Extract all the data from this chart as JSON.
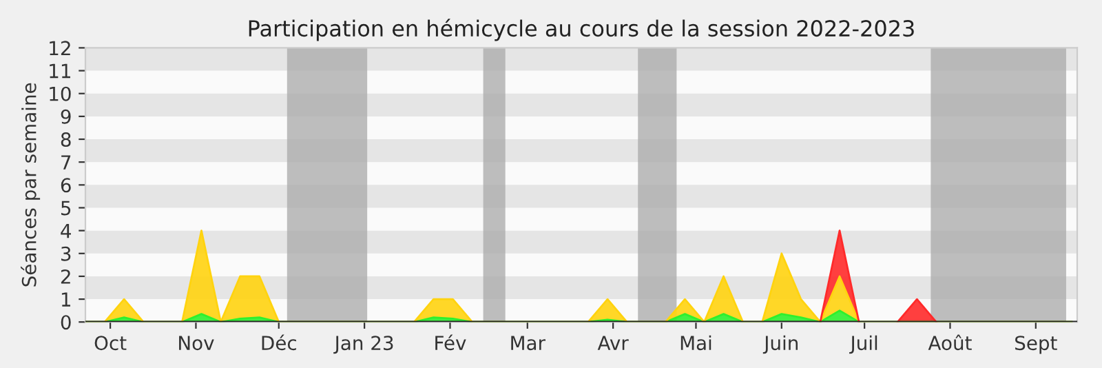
{
  "chart_data": {
    "type": "area",
    "stacked": true,
    "title": "Participation en hémicycle au cours de la session 2022-2023",
    "ylabel": "Séances par semaine",
    "x": [
      "2022-09-22",
      "2022-09-29",
      "2022-10-06",
      "2022-10-13",
      "2022-10-20",
      "2022-10-27",
      "2022-11-03",
      "2022-11-10",
      "2022-11-17",
      "2022-11-24",
      "2022-12-01",
      "2022-12-08",
      "2022-12-15",
      "2022-12-22",
      "2022-12-29",
      "2023-01-05",
      "2023-01-12",
      "2023-01-19",
      "2023-01-26",
      "2023-02-02",
      "2023-02-09",
      "2023-02-16",
      "2023-02-23",
      "2023-03-02",
      "2023-03-09",
      "2023-03-16",
      "2023-03-23",
      "2023-03-30",
      "2023-04-06",
      "2023-04-13",
      "2023-04-20",
      "2023-04-27",
      "2023-05-04",
      "2023-05-11",
      "2023-05-18",
      "2023-05-25",
      "2023-06-01",
      "2023-06-08",
      "2023-06-15",
      "2023-06-22",
      "2023-06-29",
      "2023-07-06",
      "2023-07-13",
      "2023-07-20",
      "2023-07-27",
      "2023-08-03",
      "2023-08-10",
      "2023-08-17",
      "2023-08-24",
      "2023-08-31",
      "2023-09-07",
      "2023-09-14"
    ],
    "series": [
      {
        "color": "#2ef02e",
        "values": [
          0,
          0,
          0.2,
          0,
          0,
          0,
          0.35,
          0,
          0.15,
          0.2,
          0,
          0,
          0,
          0,
          0,
          0,
          0,
          0,
          0.2,
          0.15,
          0,
          0,
          0,
          0,
          0,
          0,
          0,
          0.1,
          0,
          0,
          0,
          0.35,
          0,
          0.35,
          0,
          0,
          0.35,
          0.2,
          0,
          0.5,
          0,
          0,
          0,
          0,
          0,
          0,
          0,
          0,
          0,
          0,
          0,
          0
        ]
      },
      {
        "color": "#ffd30f",
        "values": [
          0,
          0,
          0.8,
          0,
          0,
          0,
          3.65,
          0,
          1.85,
          1.8,
          0,
          0,
          0,
          0,
          0,
          0,
          0,
          0,
          0.8,
          0.85,
          0,
          0,
          0,
          0,
          0,
          0,
          0,
          0.9,
          0,
          0,
          0,
          0.65,
          0,
          1.65,
          0,
          0,
          2.65,
          0.8,
          0,
          1.5,
          0,
          0,
          0,
          0,
          0,
          0,
          0,
          0,
          0,
          0,
          0,
          0
        ]
      },
      {
        "color": "#ff2a2a",
        "values": [
          null,
          null,
          null,
          null,
          null,
          null,
          null,
          null,
          null,
          null,
          null,
          null,
          null,
          null,
          null,
          null,
          null,
          null,
          null,
          null,
          null,
          null,
          null,
          null,
          null,
          null,
          null,
          null,
          null,
          null,
          null,
          null,
          null,
          null,
          null,
          null,
          null,
          null,
          0,
          2,
          0,
          null,
          0,
          1,
          0,
          null,
          null,
          null,
          null,
          null,
          null,
          null
        ]
      }
    ],
    "xlim": [
      "2022-09-22",
      "2023-09-16"
    ],
    "xticks": [
      {
        "value": "2022-10-01",
        "label": "Oct"
      },
      {
        "value": "2022-11-01",
        "label": "Nov"
      },
      {
        "value": "2022-12-01",
        "label": "Déc"
      },
      {
        "value": "2023-01-01",
        "label": "Jan 23"
      },
      {
        "value": "2023-02-01",
        "label": "Fév"
      },
      {
        "value": "2023-03-01",
        "label": "Mar"
      },
      {
        "value": "2023-04-01",
        "label": "Avr"
      },
      {
        "value": "2023-05-01",
        "label": "Mai"
      },
      {
        "value": "2023-06-01",
        "label": "Juin"
      },
      {
        "value": "2023-07-01",
        "label": "Juil"
      },
      {
        "value": "2023-08-01",
        "label": "Août"
      },
      {
        "value": "2023-09-01",
        "label": "Sept"
      }
    ],
    "ylim": [
      0,
      12
    ],
    "yticks": [
      0,
      1,
      2,
      3,
      4,
      5,
      6,
      7,
      8,
      9,
      10,
      11,
      12
    ],
    "bands": [
      {
        "axis": "y",
        "from": 1,
        "to": 2,
        "color": "#e5e5e5"
      },
      {
        "axis": "y",
        "from": 3,
        "to": 4,
        "color": "#e5e5e5"
      },
      {
        "axis": "y",
        "from": 5,
        "to": 6,
        "color": "#e5e5e5"
      },
      {
        "axis": "y",
        "from": 7,
        "to": 8,
        "color": "#e5e5e5"
      },
      {
        "axis": "y",
        "from": 9,
        "to": 10,
        "color": "#e5e5e5"
      },
      {
        "axis": "y",
        "from": 11,
        "to": 12,
        "color": "#e5e5e5"
      },
      {
        "axis": "x",
        "from": "2022-12-04",
        "to": "2023-01-02",
        "color": "#a8a8a8"
      },
      {
        "axis": "x",
        "from": "2023-02-13",
        "to": "2023-02-21",
        "color": "#a8a8a8"
      },
      {
        "axis": "x",
        "from": "2023-04-10",
        "to": "2023-04-24",
        "color": "#a8a8a8"
      },
      {
        "axis": "x",
        "from": "2023-07-25",
        "to": "2023-09-12",
        "color": "#a8a8a8"
      }
    ]
  }
}
